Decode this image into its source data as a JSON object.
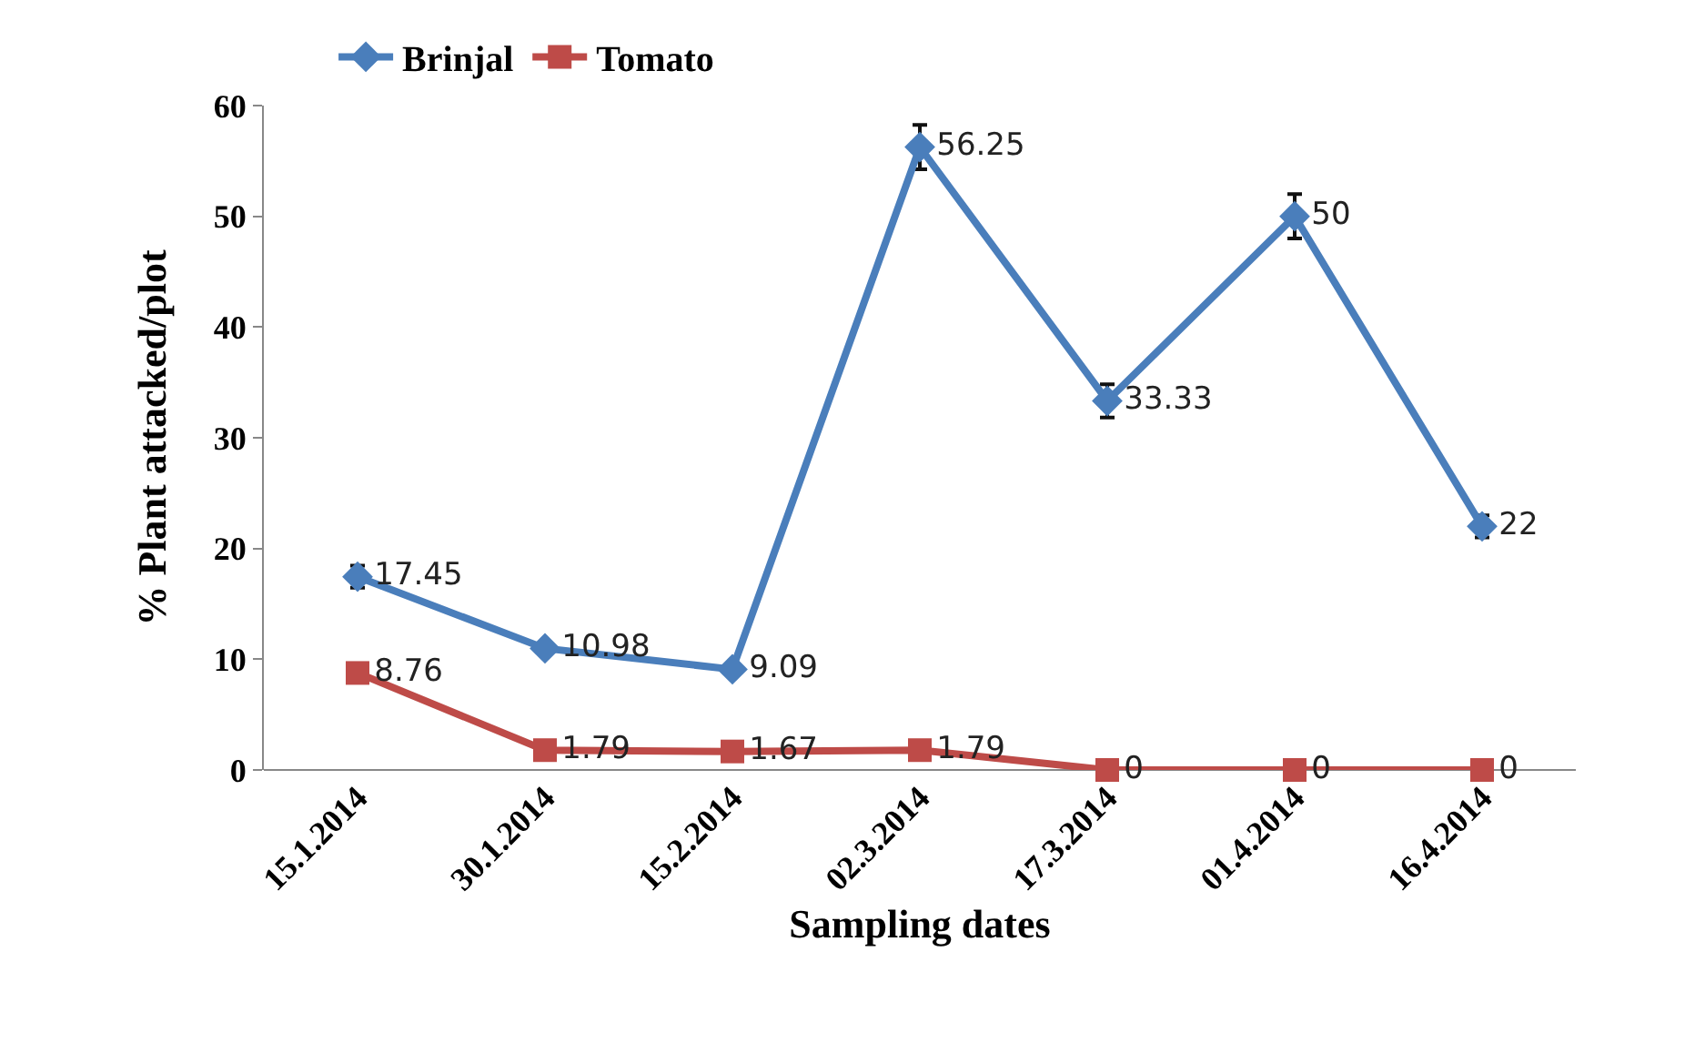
{
  "chart_data": {
    "type": "line",
    "xlabel": "Sampling dates",
    "ylabel": "% Plant attacked/plot",
    "categories": [
      "15.1.2014",
      "30.1.2014",
      "15.2.2014",
      "02.3.2014",
      "17.3.2014",
      "01.4.2014",
      "16.4.2014"
    ],
    "series": [
      {
        "name": "Brinjal",
        "color": "#4a7ebb",
        "marker": "diamond",
        "values": [
          17.45,
          10.98,
          9.09,
          56.25,
          33.33,
          50,
          22
        ],
        "errors": [
          1,
          null,
          null,
          2,
          1.5,
          2,
          1
        ]
      },
      {
        "name": "Tomato",
        "color": "#be4b48",
        "marker": "square",
        "values": [
          8.76,
          1.79,
          1.67,
          1.79,
          0,
          0,
          0
        ]
      }
    ],
    "ylim": [
      0,
      60
    ],
    "yticks": [
      0,
      10,
      20,
      30,
      40,
      50,
      60
    ],
    "grid": false,
    "legend": "top",
    "data_labels": true,
    "line_style": "solid"
  }
}
